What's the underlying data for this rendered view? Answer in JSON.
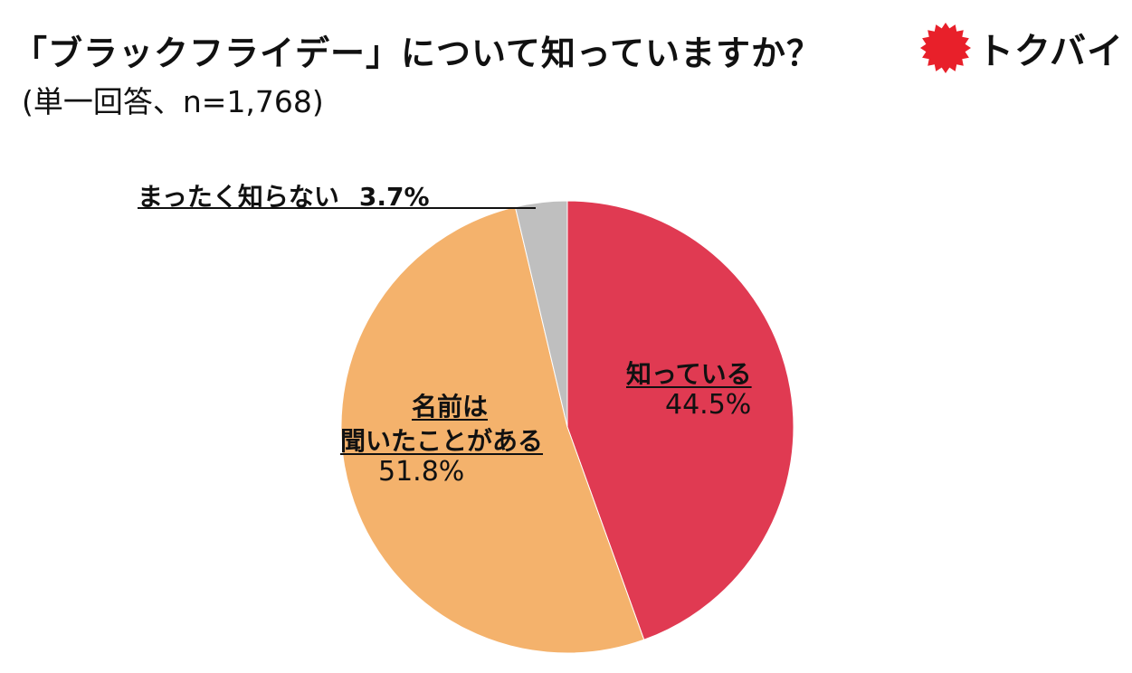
{
  "header": {
    "title": "「ブラックフライデー」について知っていますか？",
    "subtitle": "(単一回答、n=1,768)"
  },
  "brand": {
    "logo_text": "トクバイ",
    "logo_color": "#e8202a"
  },
  "chart_data": {
    "type": "pie",
    "title": "「ブラックフライデー」について知っていますか？",
    "subtitle": "(単一回答、n=1,768)",
    "slices": [
      {
        "label": "知っている",
        "value": 44.5,
        "value_label": "44.5%",
        "color": "#e03a52"
      },
      {
        "label": "名前は聞いたことがある",
        "label_line1": "名前は",
        "label_line2": "聞いたことがある",
        "value": 51.8,
        "value_label": "51.8%",
        "color": "#f4b26c"
      },
      {
        "label": "まったく知らない",
        "value": 3.7,
        "value_label": "3.7%",
        "color": "#bfbfbf"
      }
    ]
  }
}
